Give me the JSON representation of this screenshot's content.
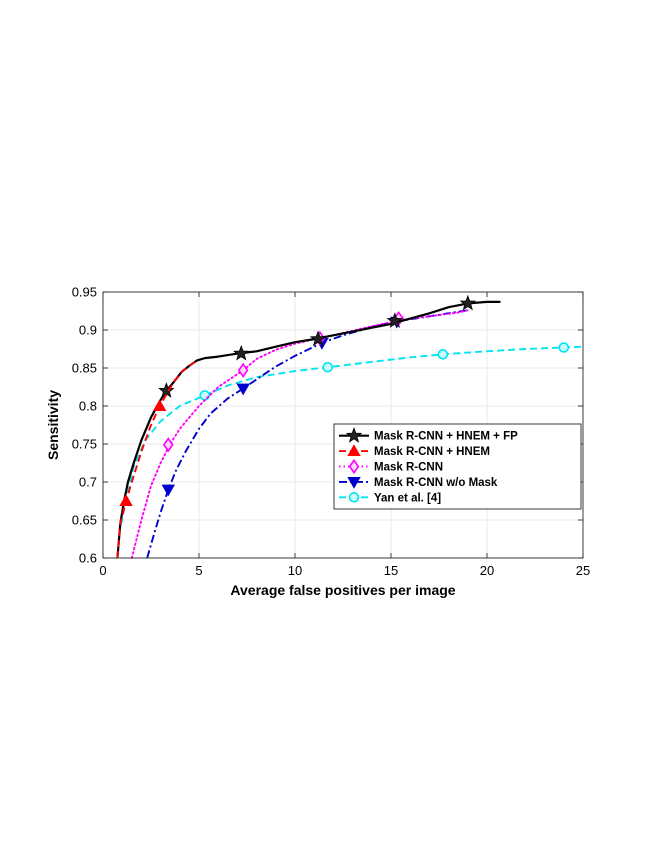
{
  "chart_data": {
    "type": "line",
    "xlabel": "Average false positives per image",
    "ylabel": "Sensitivity",
    "xlim": [
      0,
      25
    ],
    "ylim": [
      0.6,
      0.95
    ],
    "xticks": [
      0,
      5,
      10,
      15,
      20,
      25
    ],
    "xtick_labels": [
      "0",
      "5",
      "10",
      "15",
      "20",
      "25"
    ],
    "yticks": [
      0.6,
      0.65,
      0.7,
      0.75,
      0.8,
      0.85,
      0.9,
      0.95
    ],
    "ytick_labels": [
      "0.6",
      "0.65",
      "0.7",
      "0.75",
      "0.8",
      "0.85",
      "0.9",
      "0.95"
    ],
    "grid": true,
    "legend_position": "bottom-right",
    "series": [
      {
        "name": "Mask R-CNN + HNEM + FP",
        "color": "#000000",
        "line_style": "solid",
        "marker": "star",
        "x": [
          0.75,
          0.9,
          1.1,
          1.3,
          1.6,
          2.0,
          2.5,
          3.0,
          3.3,
          3.7,
          4.1,
          4.5,
          4.9,
          5.3,
          6.0,
          7.0,
          8.0,
          9.0,
          10.0,
          11.0,
          12.0,
          13.0,
          14.0,
          15.0,
          16.0,
          17.0,
          18.0,
          19.0,
          20.0,
          20.7
        ],
        "y": [
          0.6,
          0.645,
          0.675,
          0.7,
          0.725,
          0.755,
          0.785,
          0.808,
          0.82,
          0.832,
          0.845,
          0.853,
          0.86,
          0.863,
          0.865,
          0.869,
          0.872,
          0.878,
          0.884,
          0.888,
          0.893,
          0.898,
          0.903,
          0.908,
          0.915,
          0.922,
          0.93,
          0.935,
          0.937,
          0.937
        ],
        "marker_x": [
          3.3,
          7.2,
          11.2,
          15.2,
          19.0
        ],
        "marker_y": [
          0.82,
          0.869,
          0.888,
          0.912,
          0.935
        ]
      },
      {
        "name": "Mask R-CNN + HNEM",
        "color": "#ff0000",
        "line_style": "dashed",
        "marker": "triangle-up",
        "x": [
          0.75,
          0.9,
          1.2,
          1.5,
          2.0,
          2.5,
          2.95,
          3.3,
          3.7,
          4.1,
          4.5,
          4.9
        ],
        "y": [
          0.6,
          0.645,
          0.675,
          0.7,
          0.74,
          0.775,
          0.8,
          0.815,
          0.832,
          0.845,
          0.853,
          0.86
        ],
        "marker_x": [
          1.2,
          2.95
        ],
        "marker_y": [
          0.675,
          0.8
        ]
      },
      {
        "name": "Mask R-CNN",
        "color": "#ff00ff",
        "line_style": "dotted",
        "marker": "diamond",
        "x": [
          1.5,
          2.0,
          2.5,
          3.0,
          3.5,
          4.0,
          5.0,
          6.0,
          7.3,
          8.0,
          9.0,
          10.0,
          11.2,
          12.5,
          14.0,
          15.5,
          17.0,
          18.5,
          19.0
        ],
        "y": [
          0.6,
          0.65,
          0.695,
          0.725,
          0.75,
          0.77,
          0.8,
          0.825,
          0.847,
          0.862,
          0.874,
          0.882,
          0.889,
          0.896,
          0.905,
          0.913,
          0.918,
          0.923,
          0.926
        ],
        "marker_x": [
          3.4,
          7.3,
          11.3,
          15.4
        ],
        "marker_y": [
          0.749,
          0.847,
          0.889,
          0.915
        ]
      },
      {
        "name": "Mask R-CNN w/o Mask",
        "color": "#0000cd",
        "line_style": "dash-dot",
        "marker": "triangle-down",
        "x": [
          2.3,
          2.7,
          3.0,
          3.4,
          3.8,
          4.3,
          5.0,
          5.6,
          6.5,
          7.3,
          8.0,
          9.0,
          10.0,
          11.4,
          12.5,
          14.0,
          15.2,
          16.5,
          17.5,
          19.0
        ],
        "y": [
          0.6,
          0.635,
          0.66,
          0.69,
          0.715,
          0.74,
          0.77,
          0.79,
          0.81,
          0.823,
          0.835,
          0.852,
          0.866,
          0.883,
          0.893,
          0.904,
          0.911,
          0.916,
          0.92,
          0.926
        ],
        "marker_x": [
          3.4,
          7.3,
          11.4,
          15.3
        ],
        "marker_y": [
          0.69,
          0.823,
          0.883,
          0.911
        ]
      },
      {
        "name": "Yan et al. [4]",
        "color": "#00e5ee",
        "line_style": "dashed",
        "marker": "circle",
        "x": [
          0.75,
          0.9,
          1.2,
          1.6,
          2.2,
          3.0,
          4.0,
          5.3,
          6.5,
          8.0,
          10.0,
          11.7,
          14.0,
          16.0,
          17.7,
          20.0,
          22.0,
          24.0,
          25.0
        ],
        "y": [
          0.6,
          0.64,
          0.675,
          0.72,
          0.755,
          0.78,
          0.8,
          0.814,
          0.827,
          0.838,
          0.846,
          0.851,
          0.858,
          0.864,
          0.868,
          0.872,
          0.875,
          0.877,
          0.878
        ],
        "marker_x": [
          5.3,
          11.7,
          17.7,
          24.0
        ],
        "marker_y": [
          0.814,
          0.851,
          0.868,
          0.877
        ]
      }
    ]
  }
}
